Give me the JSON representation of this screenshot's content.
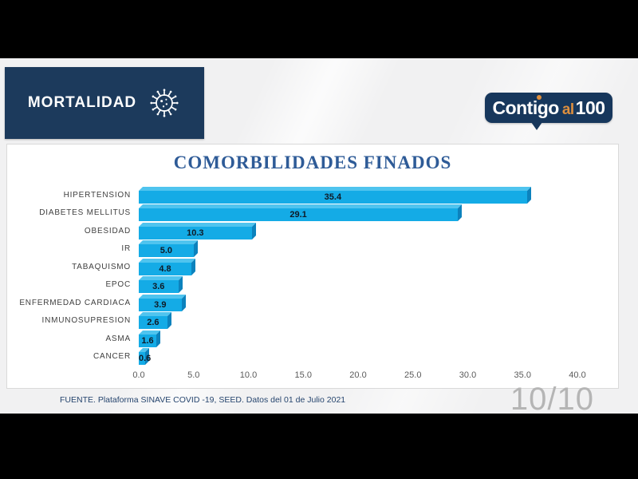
{
  "slide": {
    "header_label": "MORTALIDAD",
    "logo": {
      "part1": "Contigo",
      "part2": "al",
      "part3": "100"
    },
    "source_note": "FUENTE. Plataforma SINAVE COVID -19, SEED. Datos del 01 de Julio 2021",
    "page_indicator": "10/10"
  },
  "chart_data": {
    "type": "bar",
    "orientation": "horizontal",
    "title": "COMORBILIDADES FINADOS",
    "categories": [
      "HIPERTENSION",
      "DIABETES MELLITUS",
      "OBESIDAD",
      "IR",
      "TABAQUISMO",
      "EPOC",
      "ENFERMEDAD CARDIACA",
      "INMUNOSUPRESION",
      "ASMA",
      "CANCER"
    ],
    "values": [
      35.4,
      29.1,
      10.3,
      5.0,
      4.8,
      3.6,
      3.9,
      2.6,
      1.6,
      0.6
    ],
    "value_labels": [
      "35.4",
      "29.1",
      "10.3",
      "5.0",
      "4.8",
      "3.6",
      "3.9",
      "2.6",
      "1.6",
      "0.6"
    ],
    "xlim": [
      0,
      40
    ],
    "x_ticks": [
      "0.0",
      "5.0",
      "10.0",
      "15.0",
      "20.0",
      "25.0",
      "30.0",
      "35.0",
      "40.0"
    ],
    "grid": false,
    "legend": false
  },
  "colors": {
    "bar": "#14abe6",
    "bar_top": "#4fc4ef",
    "bar_side": "#0c82bd",
    "header_navy": "#1c3a5c",
    "logo_navy": "#17375c",
    "logo_orange": "#de8f3e",
    "title_blue": "#2e5b97",
    "slide_bg": "#f1f1f2"
  }
}
